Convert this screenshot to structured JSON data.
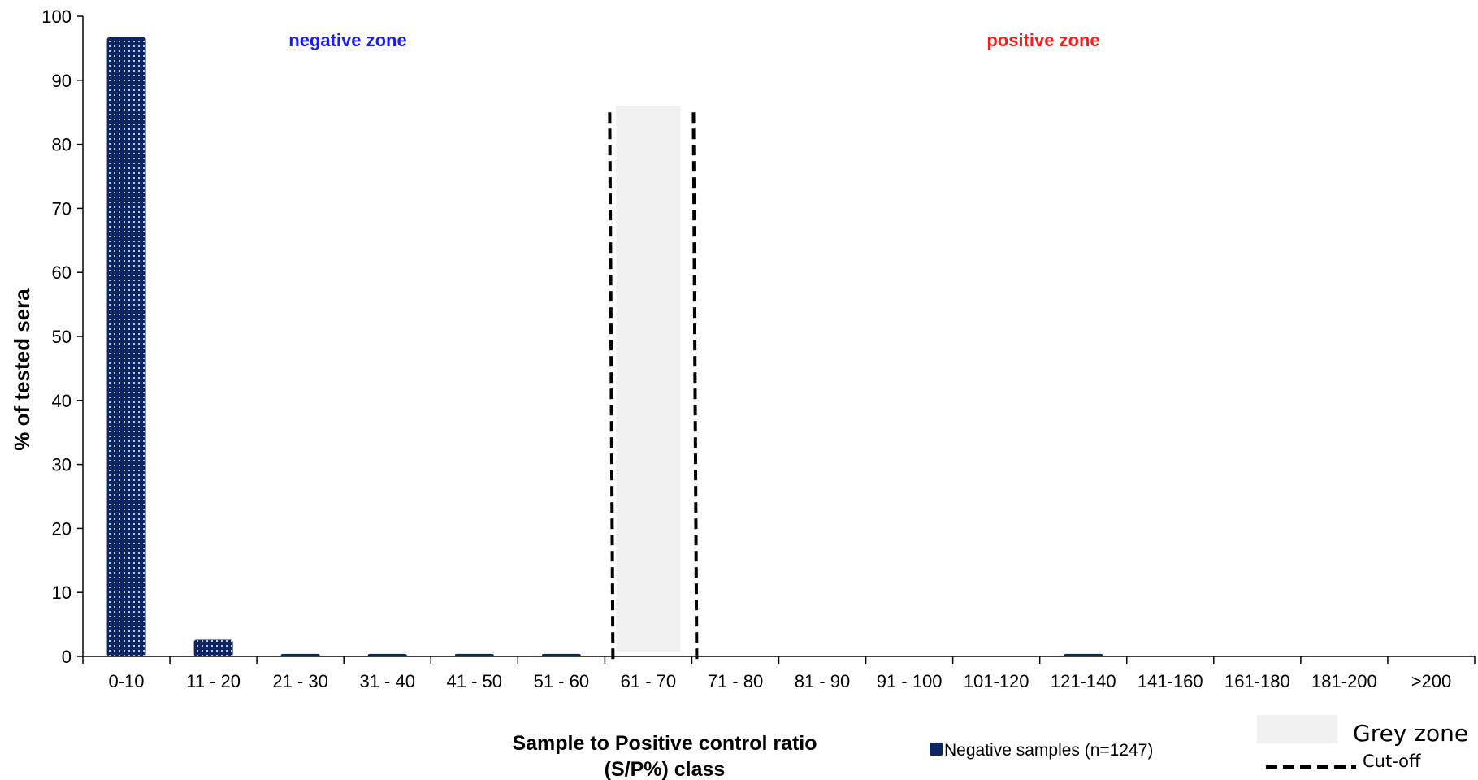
{
  "chart_data": {
    "type": "bar",
    "categories": [
      "0-10",
      "11 - 20",
      "21 - 30",
      "31 - 40",
      "41 - 50",
      "51 - 60",
      "61 - 70",
      "71 - 80",
      "81 - 90",
      "91 - 100",
      "101-120",
      "121-140",
      "141-160",
      "161-180",
      "181-200",
      ">200"
    ],
    "series": [
      {
        "name": "Negative samples (n=1247)",
        "values": [
          96.7,
          2.6,
          0.4,
          0.4,
          0.4,
          0.4,
          0,
          0,
          0,
          0,
          0,
          0.4,
          0,
          0,
          0,
          0
        ],
        "color": "#0d2560"
      }
    ],
    "ylabel": "% of tested sera",
    "xlabel_line1": "Sample to Positive control ratio",
    "xlabel_line2": "(S/P%) class",
    "ylim": [
      0,
      100
    ],
    "yticks": [
      0,
      10,
      20,
      30,
      40,
      50,
      60,
      70,
      80,
      90,
      100
    ],
    "grid": false,
    "annotations": {
      "negative_zone": "negative zone",
      "negative_zone_color": "#1a1aff",
      "positive_zone": "positive zone",
      "positive_zone_color": "#ff1a1a"
    },
    "grey_zone": {
      "label": "Grey zone",
      "color": "#f0f0f0",
      "category": "61 - 70",
      "y_top": 86
    },
    "cutoff": {
      "label": "Cut-off",
      "y_top": 85
    },
    "legend_placement": "bottom"
  }
}
